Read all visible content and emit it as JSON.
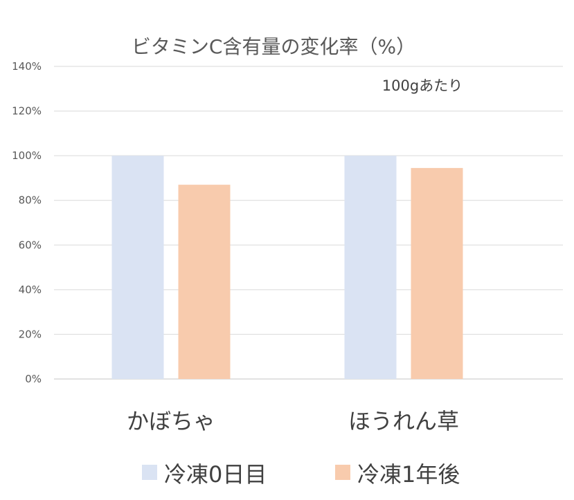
{
  "chart_data": {
    "type": "bar",
    "title": "ビタミンC含有量の変化率（%）",
    "subtitle": "100gあたり",
    "categories": [
      "かぼちゃ",
      "ほうれん草"
    ],
    "series": [
      {
        "name": "冷凍0日目",
        "values": [
          100,
          100
        ],
        "color": "#dae3f3"
      },
      {
        "name": "冷凍1年後",
        "values": [
          87,
          94.5
        ],
        "color": "#f8cbad"
      }
    ],
    "ylim": [
      0,
      140
    ],
    "yticks": [
      0,
      20,
      40,
      60,
      80,
      100,
      120,
      140
    ],
    "ytick_labels": [
      "0%",
      "20%",
      "40%",
      "60%",
      "80%",
      "100%",
      "120%",
      "140%"
    ],
    "grid": true,
    "gridline_color": "#d9d9d9",
    "legend_position": "bottom"
  }
}
